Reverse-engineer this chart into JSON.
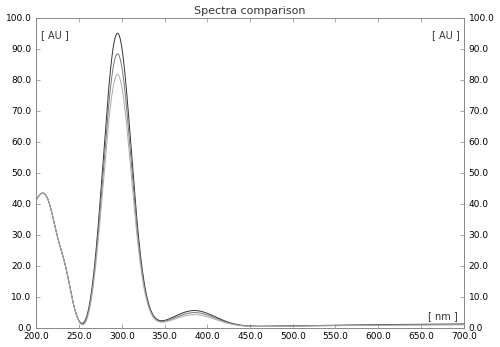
{
  "title": "Spectra comparison",
  "xlabel": "[ nm ]",
  "ylabel": "[ AU ]",
  "ylabel_right": "[ AU ]",
  "xlim": [
    200,
    700
  ],
  "ylim": [
    0,
    100
  ],
  "yticks": [
    0.0,
    10.0,
    20.0,
    30.0,
    40.0,
    50.0,
    60.0,
    70.0,
    80.0,
    90.0,
    100.0
  ],
  "xticks": [
    200.0,
    250.0,
    300.0,
    350.0,
    400.0,
    450.0,
    500.0,
    550.0,
    600.0,
    650.0,
    700.0
  ],
  "background_color": "#ffffff",
  "line_colors": [
    "#333333",
    "#777777",
    "#aaaaaa"
  ],
  "title_fontsize": 8,
  "axis_fontsize": 7,
  "tick_fontsize": 6.5
}
